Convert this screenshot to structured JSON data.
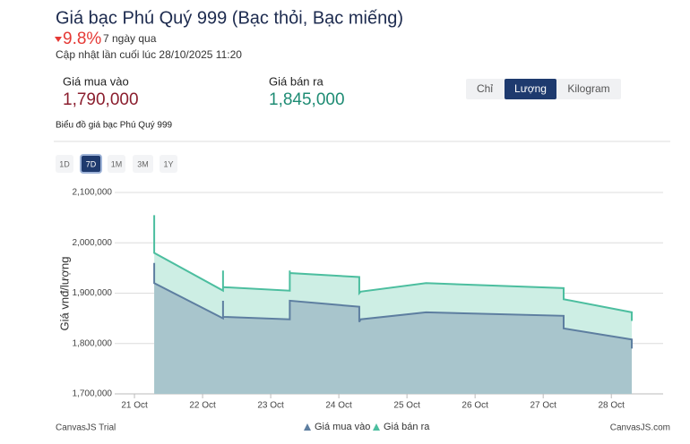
{
  "header": {
    "title": "Giá bạc Phú Quý 999 (Bạc thỏi, Bạc miếng)",
    "change": "9.8%",
    "period": "7 ngày qua",
    "updated": "Cập nhật lần cuối lúc 28/10/2025 11:20"
  },
  "prices": {
    "buy_label": "Giá mua vào",
    "buy_value": "1,790,000",
    "sell_label": "Giá bán ra",
    "sell_value": "1,845,000"
  },
  "unit_tabs": [
    "Chỉ",
    "Lượng",
    "Kilogram"
  ],
  "chart_heading": "Biểu đồ giá bạc Phú Quý 999",
  "range_buttons": [
    "1D",
    "7D",
    "1M",
    "3M",
    "1Y"
  ],
  "footer": {
    "left": "CanvasJS Trial",
    "right": "CanvasJS.com"
  },
  "chart_data": {
    "type": "area",
    "y_label": "Giá vnđ/lượng",
    "xlim": [
      20.71,
      28.76
    ],
    "xticks": [
      {
        "value": 21,
        "label": "21 Oct"
      },
      {
        "value": 22,
        "label": "22 Oct"
      },
      {
        "value": 23,
        "label": "23 Oct"
      },
      {
        "value": 24,
        "label": "24 Oct"
      },
      {
        "value": 25,
        "label": "25 Oct"
      },
      {
        "value": 26,
        "label": "26 Oct"
      },
      {
        "value": 27,
        "label": "27 Oct"
      },
      {
        "value": 28,
        "label": "28 Oct"
      }
    ],
    "ylim": [
      1700000,
      2100000
    ],
    "yticks": [
      {
        "value": 1700000,
        "label": "1,700,000"
      },
      {
        "value": 1800000,
        "label": "1,800,000"
      },
      {
        "value": 1900000,
        "label": "1,900,000"
      },
      {
        "value": 2000000,
        "label": "2,000,000"
      },
      {
        "value": 2100000,
        "label": "2,100,000"
      }
    ],
    "grid": true,
    "series": [
      {
        "name": "Giá bán ra",
        "color": "#4cbe9f",
        "fill": "#cdeee4",
        "x": [
          21.29,
          21.29,
          22.3,
          22.3,
          22.3,
          23.28,
          23.28,
          23.28,
          24.3,
          24.3,
          24.32,
          25.28,
          27.3,
          27.3,
          28.3,
          28.3
        ],
        "values": [
          2055000,
          1980000,
          1905000,
          1945000,
          1912000,
          1905000,
          1945000,
          1940000,
          1932000,
          1900000,
          1903000,
          1920000,
          1910000,
          1888000,
          1862000,
          1845000
        ]
      },
      {
        "name": "Giá mua vào",
        "color": "#5d7ea0",
        "fill": "#a8c5cc",
        "x": [
          21.29,
          21.29,
          22.3,
          22.3,
          22.3,
          23.28,
          23.28,
          24.3,
          24.3,
          24.32,
          25.28,
          27.3,
          27.3,
          28.3,
          28.3
        ],
        "values": [
          1960000,
          1920000,
          1850000,
          1885000,
          1853000,
          1848000,
          1885000,
          1873000,
          1843000,
          1848000,
          1862000,
          1855000,
          1830000,
          1808000,
          1790000
        ]
      }
    ],
    "legend_order": [
      1,
      0
    ]
  }
}
